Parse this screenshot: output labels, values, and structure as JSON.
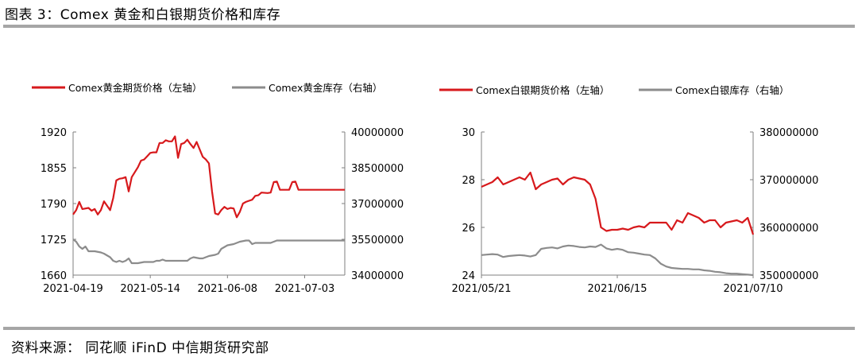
{
  "figure": {
    "title": "图表 3：Comex 黄金和白银期货价格和库存",
    "source": "资料来源：  同花顺 iFinD 中信期货研究部"
  },
  "colors": {
    "price": "#d7191c",
    "inventory": "#8c8c8c",
    "axis": "#7f7f7f",
    "rule": "#a6a6a6"
  },
  "chart_data": [
    {
      "type": "line",
      "x_ticks": [
        "2021-04-19",
        "2021-05-14",
        "2021-06-08",
        "2021-07-03"
      ],
      "x_tick_pos": [
        0,
        25,
        50,
        75
      ],
      "xlim": [
        0,
        88
      ],
      "ylim_left": [
        1660,
        1920
      ],
      "yticks_left": [
        "1920",
        "1855",
        "1790",
        "1725",
        "1660"
      ],
      "ylim_right": [
        34000000,
        40000000
      ],
      "yticks_right": [
        "40000000",
        "38500000",
        "37000000",
        "35500000",
        "34000000"
      ],
      "legend_position": "top",
      "series": [
        {
          "name": "Comex黄金期货价格（左轴）",
          "axis": "left",
          "x": [
            0,
            1,
            2,
            3,
            5,
            6,
            7,
            8,
            9,
            10,
            12,
            13,
            14,
            15,
            16,
            17,
            18,
            19,
            21,
            22,
            23,
            24,
            25,
            26,
            27,
            28,
            29,
            30,
            31,
            32,
            33,
            34,
            35,
            36,
            37,
            38,
            39,
            40,
            42,
            43,
            44,
            45,
            46,
            47,
            48,
            49,
            50,
            51,
            52,
            53,
            54,
            55,
            56,
            57,
            58,
            59,
            60,
            61,
            63,
            64,
            65,
            66,
            67,
            68,
            70,
            71,
            72,
            73,
            74,
            75,
            77,
            78,
            79,
            80,
            81,
            82,
            84,
            85,
            86,
            87,
            88
          ],
          "values": [
            1770,
            1778,
            1793,
            1780,
            1782,
            1777,
            1780,
            1770,
            1778,
            1794,
            1778,
            1800,
            1832,
            1835,
            1836,
            1838,
            1812,
            1838,
            1856,
            1868,
            1870,
            1876,
            1882,
            1883,
            1883,
            1900,
            1900,
            1905,
            1903,
            1903,
            1912,
            1873,
            1898,
            1900,
            1906,
            1898,
            1891,
            1902,
            1875,
            1870,
            1863,
            1812,
            1772,
            1770,
            1778,
            1784,
            1780,
            1782,
            1781,
            1765,
            1775,
            1790,
            1793,
            1795,
            1797,
            1804,
            1805,
            1810,
            1809,
            1810,
            1829,
            1830,
            1815,
            1815,
            1815,
            1829,
            1830,
            1815,
            1815,
            1815,
            1815,
            1815,
            1815,
            1815,
            1815,
            1815,
            1815,
            1815,
            1815,
            1815,
            1815
          ]
        },
        {
          "name": "Comex黄金库存（右轴）",
          "axis": "right",
          "x": [
            0,
            1,
            2,
            3,
            4,
            5,
            7,
            9,
            10,
            12,
            13,
            14,
            15,
            16,
            17,
            18,
            19,
            21,
            23,
            25,
            26,
            27,
            28,
            29,
            30,
            33,
            35,
            37,
            38,
            39,
            41,
            42,
            44,
            46,
            47,
            48,
            50,
            52,
            54,
            56,
            57,
            58,
            59,
            60,
            61,
            62,
            64,
            66,
            68,
            70,
            72,
            74,
            75,
            77,
            78,
            79,
            80,
            81,
            82,
            84,
            86,
            88
          ],
          "values": [
            35500000,
            35400000,
            35200000,
            35100000,
            35200000,
            35000000,
            35000000,
            34950000,
            34900000,
            34750000,
            34600000,
            34550000,
            34600000,
            34550000,
            34600000,
            34700000,
            34500000,
            34500000,
            34550000,
            34550000,
            34550000,
            34600000,
            34600000,
            34650000,
            34600000,
            34600000,
            34600000,
            34600000,
            34700000,
            34750000,
            34700000,
            34700000,
            34800000,
            34850000,
            34900000,
            35100000,
            35250000,
            35300000,
            35400000,
            35450000,
            35450000,
            35300000,
            35350000,
            35350000,
            35350000,
            35350000,
            35350000,
            35450000,
            35450000,
            35450000,
            35450000,
            35450000,
            35450000,
            35450000,
            35450000,
            35450000,
            35450000,
            35450000,
            35450000,
            35450000,
            35450000,
            35450000
          ]
        }
      ]
    },
    {
      "type": "line",
      "x_ticks": [
        "2021/05/21",
        "2021/06/15",
        "2021/07/10"
      ],
      "x_tick_pos": [
        0,
        25,
        50
      ],
      "xlim": [
        0,
        50
      ],
      "ylim_left": [
        24,
        30
      ],
      "yticks_left": [
        "30",
        "28",
        "26",
        "24"
      ],
      "ylim_right": [
        350000000,
        380000000
      ],
      "yticks_right": [
        "380000000",
        "370000000",
        "360000000",
        "350000000"
      ],
      "legend_position": "top",
      "series": [
        {
          "name": "Comex白银期货价格（左轴）",
          "axis": "left",
          "x": [
            0,
            1,
            2,
            3,
            4,
            5,
            6,
            7,
            8,
            9,
            10,
            11,
            12,
            13,
            14,
            15,
            16,
            17,
            18,
            19,
            20,
            21,
            22,
            23,
            24,
            25,
            26,
            27,
            28,
            29,
            30,
            31,
            32,
            33,
            34,
            35,
            36,
            37,
            38,
            39,
            40,
            41,
            42,
            43,
            44,
            45,
            46,
            47,
            48,
            49,
            50
          ],
          "values": [
            27.7,
            27.8,
            27.9,
            28.1,
            27.8,
            27.9,
            28.0,
            28.1,
            28.0,
            28.3,
            27.6,
            27.8,
            27.9,
            28.0,
            28.05,
            27.8,
            28.0,
            28.1,
            28.05,
            28.0,
            27.8,
            27.2,
            26.0,
            25.85,
            25.9,
            25.9,
            25.95,
            25.9,
            26.0,
            26.05,
            26.0,
            26.2,
            26.2,
            26.2,
            26.2,
            25.9,
            26.3,
            26.2,
            26.6,
            26.5,
            26.4,
            26.2,
            26.3,
            26.3,
            26.0,
            26.2,
            26.25,
            26.3,
            26.2,
            26.4,
            25.7
          ]
        },
        {
          "name": "Comex白银库存（右轴）",
          "axis": "right",
          "x": [
            0,
            1,
            2,
            3,
            4,
            5,
            6,
            7,
            8,
            9,
            10,
            11,
            12,
            13,
            14,
            15,
            16,
            17,
            18,
            19,
            20,
            21,
            22,
            23,
            24,
            25,
            26,
            27,
            28,
            29,
            30,
            31,
            32,
            33,
            34,
            35,
            36,
            37,
            38,
            39,
            40,
            41,
            42,
            43,
            44,
            45,
            46,
            47,
            48,
            49,
            50
          ],
          "values": [
            354200000,
            354300000,
            354400000,
            354300000,
            353800000,
            354000000,
            354100000,
            354200000,
            354100000,
            353900000,
            354200000,
            355500000,
            355700000,
            355800000,
            355600000,
            356000000,
            356200000,
            356100000,
            355900000,
            355800000,
            356000000,
            355900000,
            356400000,
            355600000,
            355300000,
            355500000,
            355300000,
            354800000,
            354700000,
            354500000,
            354300000,
            354200000,
            353500000,
            352400000,
            351800000,
            351500000,
            351400000,
            351300000,
            351300000,
            351200000,
            351200000,
            351000000,
            350900000,
            350700000,
            350600000,
            350400000,
            350300000,
            350300000,
            350200000,
            350100000,
            350000000
          ]
        }
      ]
    }
  ]
}
